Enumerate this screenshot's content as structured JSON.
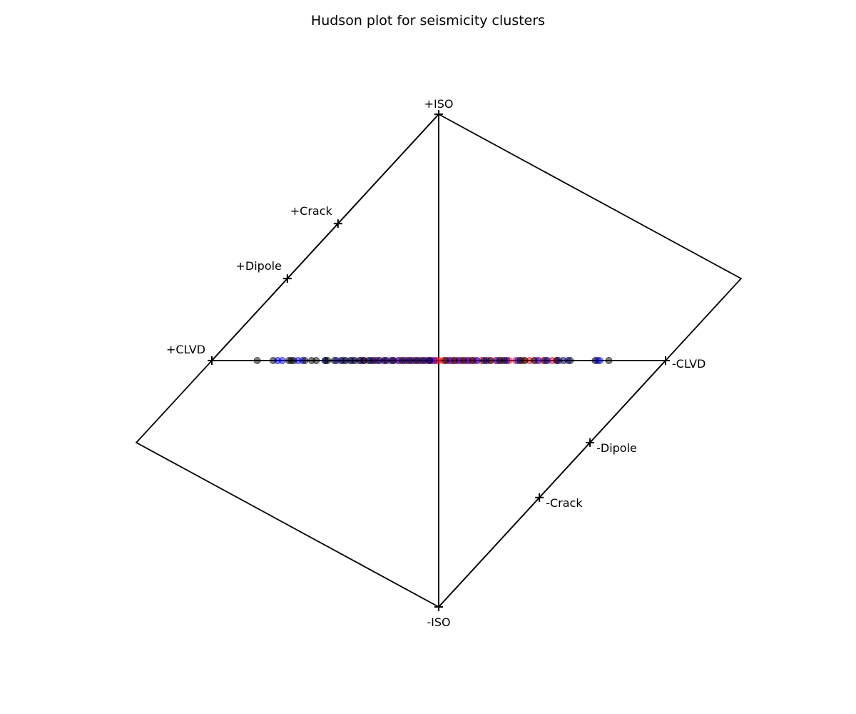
{
  "chart_data": {
    "type": "scatter",
    "title": "Hudson plot for seismicity clusters",
    "xlabel": "",
    "ylabel": "",
    "xlim": [
      -1.33,
      1.33
    ],
    "ylim": [
      -1,
      1
    ],
    "grid": false,
    "legend": "none",
    "reference_points": [
      {
        "label": "+ISO",
        "x": 0,
        "y": 1
      },
      {
        "label": "-ISO",
        "x": 0,
        "y": -1
      },
      {
        "label": "+CLVD",
        "x": -1,
        "y": 0
      },
      {
        "label": "-CLVD",
        "x": 1,
        "y": 0
      },
      {
        "label": "+Dipole",
        "x": -0.667,
        "y": 0.333
      },
      {
        "label": "-Dipole",
        "x": 0.667,
        "y": -0.333
      },
      {
        "label": "+Crack",
        "x": -0.444,
        "y": 0.556
      },
      {
        "label": "-Crack",
        "x": 0.444,
        "y": -0.556
      }
    ],
    "boundary": [
      {
        "x": 0,
        "y": 1
      },
      {
        "x": 1.333,
        "y": 0.333
      },
      {
        "x": 0,
        "y": -1
      },
      {
        "x": -1.333,
        "y": -0.333
      }
    ],
    "series": [
      {
        "color": "#ff0000",
        "points": [
          [
            -0.33,
            0
          ],
          [
            -0.28,
            0
          ],
          [
            -0.24,
            0
          ],
          [
            -0.2,
            0
          ],
          [
            -0.17,
            0
          ],
          [
            -0.14,
            0
          ],
          [
            -0.11,
            0
          ],
          [
            -0.08,
            0
          ],
          [
            -0.05,
            0
          ],
          [
            -0.03,
            0
          ],
          [
            -0.01,
            0
          ],
          [
            0.0,
            0
          ],
          [
            0.02,
            0
          ],
          [
            0.04,
            0
          ],
          [
            0.06,
            0
          ],
          [
            0.08,
            0
          ],
          [
            0.1,
            0
          ],
          [
            0.12,
            0
          ],
          [
            0.14,
            0
          ],
          [
            0.16,
            0
          ],
          [
            0.19,
            0
          ],
          [
            0.22,
            0
          ],
          [
            0.25,
            0
          ],
          [
            0.28,
            0
          ],
          [
            0.31,
            0
          ],
          [
            0.34,
            0
          ],
          [
            0.37,
            0
          ],
          [
            0.4,
            0
          ],
          [
            0.43,
            0
          ],
          [
            0.46,
            0
          ],
          [
            0.5,
            0
          ],
          [
            0.52,
            0
          ]
        ]
      },
      {
        "color": "#0000ff",
        "points": [
          [
            -0.71,
            0
          ],
          [
            -0.69,
            0
          ],
          [
            -0.62,
            0
          ],
          [
            -0.6,
            0
          ],
          [
            -0.5,
            0
          ],
          [
            -0.45,
            0
          ],
          [
            -0.42,
            0
          ],
          [
            -0.38,
            0
          ],
          [
            -0.34,
            0
          ],
          [
            -0.3,
            0
          ],
          [
            -0.27,
            0
          ],
          [
            -0.24,
            0
          ],
          [
            -0.21,
            0
          ],
          [
            -0.18,
            0
          ],
          [
            -0.15,
            0
          ],
          [
            -0.12,
            0
          ],
          [
            -0.09,
            0
          ],
          [
            -0.06,
            0
          ],
          [
            -0.04,
            0
          ],
          [
            -0.02,
            0
          ],
          [
            0.05,
            0
          ],
          [
            0.09,
            0
          ],
          [
            0.13,
            0
          ],
          [
            0.17,
            0
          ],
          [
            0.21,
            0
          ],
          [
            0.26,
            0
          ],
          [
            0.3,
            0
          ],
          [
            0.35,
            0
          ],
          [
            0.44,
            0
          ],
          [
            0.48,
            0
          ],
          [
            0.53,
            0
          ],
          [
            0.57,
            0
          ],
          [
            0.7,
            0
          ],
          [
            0.71,
            0
          ]
        ]
      },
      {
        "color": "#000000",
        "points": [
          [
            -0.8,
            0
          ],
          [
            -0.73,
            0
          ],
          [
            -0.66,
            0
          ],
          [
            -0.65,
            0
          ],
          [
            -0.64,
            0
          ],
          [
            -0.59,
            0
          ],
          [
            -0.56,
            0
          ],
          [
            -0.54,
            0
          ],
          [
            -0.5,
            0
          ],
          [
            -0.49,
            0
          ],
          [
            -0.46,
            0
          ],
          [
            -0.43,
            0
          ],
          [
            -0.41,
            0
          ],
          [
            -0.39,
            0
          ],
          [
            -0.37,
            0
          ],
          [
            -0.35,
            0
          ],
          [
            -0.33,
            0
          ],
          [
            -0.31,
            0
          ],
          [
            -0.29,
            0
          ],
          [
            -0.26,
            0
          ],
          [
            -0.23,
            0
          ],
          [
            -0.2,
            0
          ],
          [
            -0.16,
            0
          ],
          [
            -0.13,
            0
          ],
          [
            -0.1,
            0
          ],
          [
            -0.07,
            0
          ],
          [
            -0.04,
            0
          ],
          [
            0.03,
            0
          ],
          [
            0.07,
            0
          ],
          [
            0.11,
            0
          ],
          [
            0.15,
            0
          ],
          [
            0.2,
            0
          ],
          [
            0.23,
            0
          ],
          [
            0.27,
            0
          ],
          [
            0.29,
            0
          ],
          [
            0.36,
            0
          ],
          [
            0.38,
            0
          ],
          [
            0.42,
            0
          ],
          [
            0.47,
            0
          ],
          [
            0.52,
            0
          ],
          [
            0.55,
            0
          ],
          [
            0.58,
            0
          ],
          [
            0.69,
            0
          ],
          [
            0.75,
            0
          ]
        ]
      }
    ]
  }
}
